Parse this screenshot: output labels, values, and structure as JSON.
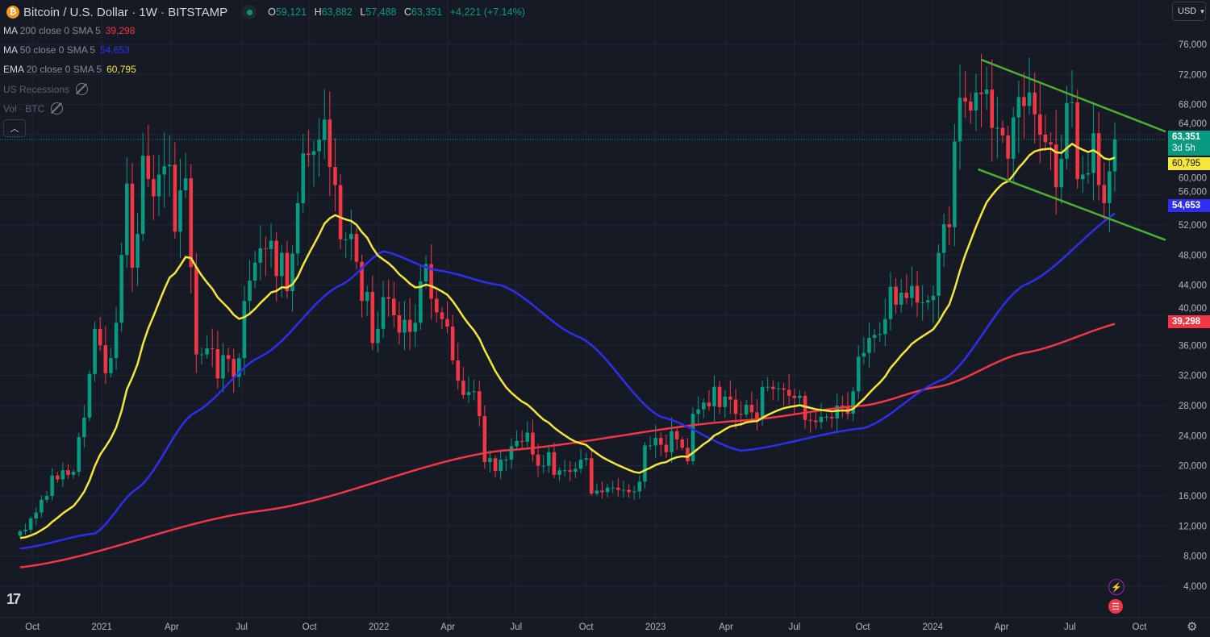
{
  "header": {
    "symbol_icon": "bitcoin-icon",
    "title": "Bitcoin / U.S. Dollar · 1W · BITSTAMP",
    "ohlc": {
      "o_label": "O",
      "o": "59,121",
      "h_label": "H",
      "h": "63,882",
      "l_label": "L",
      "l": "57,488",
      "c_label": "C",
      "c": "63,351",
      "change": "+4,221 (+7.14%)"
    }
  },
  "legend": [
    {
      "name": "MA",
      "params": "200 close 0 SMA 5",
      "value": "39,298",
      "color": "#f23645"
    },
    {
      "name": "MA",
      "params": "50 close 0 SMA 5",
      "value": "54,653",
      "color": "#2e2ef0"
    },
    {
      "name": "EMA",
      "params": "20 close 0 SMA 5",
      "value": "60,795",
      "color": "#f5e63c"
    }
  ],
  "hidden_indicators": [
    "US Recessions",
    "Vol · BTC"
  ],
  "currency": "USD",
  "price_tags": {
    "last": "63,351",
    "countdown": "3d 5h",
    "ema20": "60,795",
    "ma50": "54,653",
    "ma200": "39,298"
  },
  "colors": {
    "up": "#089981",
    "down": "#f23645",
    "ema20": "#f5e63c",
    "ma50": "#2e2ef0",
    "ma200": "#f23645",
    "trend": "#4caf30",
    "bg": "#161a25",
    "grid": "#232632"
  },
  "chart_data": {
    "type": "candlestick",
    "title": "Bitcoin / U.S. Dollar · 1W · BITSTAMP",
    "interval": "1W",
    "ylim": [
      0,
      80000
    ],
    "y_ticks": [
      4000,
      8000,
      12000,
      16000,
      20000,
      24000,
      28000,
      32000,
      36000,
      40000,
      44000,
      48000,
      52000,
      56000,
      60000,
      64000,
      68000,
      72000,
      76000
    ],
    "x_ticks": [
      {
        "label": "Oct",
        "week": 2.3
      },
      {
        "label": "2021",
        "week": 15.3
      },
      {
        "label": "Apr",
        "week": 28.4
      },
      {
        "label": "Jul",
        "week": 41.5
      },
      {
        "label": "Oct",
        "week": 54.2
      },
      {
        "label": "2022",
        "week": 67.2
      },
      {
        "label": "Apr",
        "week": 80.1
      },
      {
        "label": "Jul",
        "week": 92.9
      },
      {
        "label": "Oct",
        "week": 106
      },
      {
        "label": "2023",
        "week": 119
      },
      {
        "label": "Apr",
        "week": 132.2
      },
      {
        "label": "Jul",
        "week": 145
      },
      {
        "label": "Oct",
        "week": 157.8
      },
      {
        "label": "2024",
        "week": 170.9
      },
      {
        "label": "Apr",
        "week": 183.8
      },
      {
        "label": "Jul",
        "week": 196.6
      },
      {
        "label": "Oct",
        "week": 209.6
      }
    ],
    "weekly_close_k": [
      11.3,
      11.5,
      13.0,
      13.8,
      15.5,
      16.0,
      18.7,
      18.2,
      19.4,
      18.8,
      19.2,
      23.8,
      26.4,
      32.2,
      38.2,
      36.0,
      32.3,
      34.3,
      39.0,
      48.0,
      57.5,
      46.3,
      50.8,
      61.2,
      58.1,
      55.8,
      58.7,
      59.8,
      60.0,
      51.1,
      56.6,
      58.2,
      46.4,
      34.8,
      34.8,
      35.6,
      35.5,
      31.6,
      34.7,
      34.2,
      31.8,
      34.3,
      41.9,
      44.6,
      47.0,
      48.9,
      48.8,
      49.9,
      45.2,
      48.3,
      43.2,
      48.2,
      54.9,
      61.5,
      61.3,
      61.8,
      63.3,
      66.0,
      59.7,
      57.3,
      50.1,
      50.1,
      50.8,
      47.1,
      41.9,
      43.1,
      36.3,
      38.2,
      42.4,
      42.2,
      40.0,
      37.7,
      39.4,
      37.8,
      39.0,
      44.5,
      46.8,
      42.2,
      40.4,
      39.5,
      38.5,
      34.0,
      31.3,
      29.4,
      29.8,
      29.9,
      26.6,
      20.5,
      21.0,
      19.3,
      20.8,
      20.8,
      22.6,
      23.3,
      23.2,
      24.4,
      21.5,
      20.0,
      20.0,
      21.8,
      18.8,
      19.4,
      19.4,
      19.2,
      19.6,
      20.8,
      21.0,
      16.3,
      16.7,
      16.5,
      17.1,
      17.1,
      16.8,
      16.8,
      16.5,
      16.6,
      17.9,
      22.7,
      22.7,
      23.7,
      22.8,
      21.8,
      24.6,
      23.5,
      22.4,
      20.6,
      26.9,
      27.5,
      28.4,
      27.9,
      30.5,
      27.8,
      29.2,
      28.8,
      26.9,
      26.8,
      28.1,
      27.1,
      26.3,
      30.5,
      30.5,
      30.2,
      30.3,
      30.1,
      29.3,
      29.0,
      29.3,
      26.1,
      26.0,
      25.8,
      26.5,
      26.5,
      26.3,
      28.0,
      27.9,
      26.9,
      29.9,
      34.5,
      35.0,
      37.0,
      37.4,
      37.5,
      39.5,
      43.8,
      41.4,
      43.0,
      42.3,
      43.9,
      41.7,
      41.7,
      42.0,
      42.6,
      48.3,
      52.1,
      51.7,
      63.1,
      68.9,
      68.4,
      67.2,
      69.6,
      69.4,
      70.0,
      64.9,
      64.9,
      63.9,
      60.8,
      66.3,
      69.0,
      67.8,
      69.6,
      66.7,
      64.0,
      63.0,
      62.7,
      57.0,
      60.8,
      68.2,
      68.3,
      58.1,
      58.7,
      58.9,
      64.2,
      57.3,
      54.9,
      59.12,
      63.351
    ],
    "first_open_k": 10.7,
    "ema20_seed_k": 10.3,
    "ma50_points_k": [
      [
        0,
        9
      ],
      [
        14,
        11
      ],
      [
        22,
        17
      ],
      [
        32.5,
        27
      ],
      [
        45,
        34.5
      ],
      [
        60,
        44
      ],
      [
        68,
        48.5
      ],
      [
        78,
        46
      ],
      [
        90,
        44
      ],
      [
        105,
        37
      ],
      [
        120,
        26.5
      ],
      [
        135,
        22
      ],
      [
        158,
        25
      ],
      [
        173,
        31.5
      ],
      [
        188,
        44
      ],
      [
        208,
        54.65
      ]
    ],
    "ma200_points_k": [
      [
        0,
        6.5
      ],
      [
        45,
        14
      ],
      [
        90,
        22
      ],
      [
        135,
        26
      ],
      [
        158,
        28
      ],
      [
        172,
        30.5
      ],
      [
        188,
        35
      ],
      [
        208,
        39.3
      ]
    ],
    "trendlines_k": [
      {
        "name": "channel-upper",
        "from": [
          180,
          73.96
        ],
        "to": [
          225.8,
          64.4
        ]
      },
      {
        "name": "channel-lower",
        "from": [
          179.4,
          59.4
        ],
        "to": [
          225.8,
          50.0
        ]
      }
    ]
  }
}
